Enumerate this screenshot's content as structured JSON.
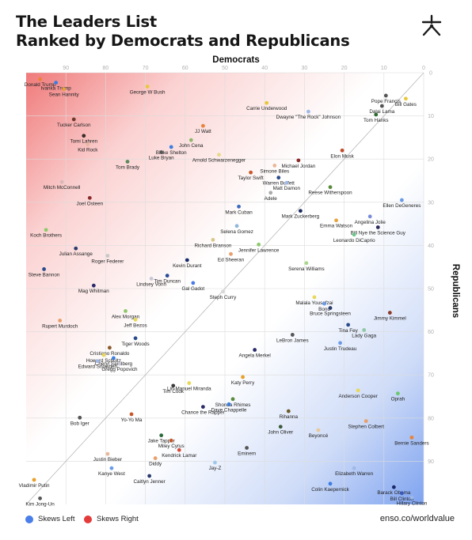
{
  "title_line1": "The Leaders List",
  "title_line2": "Ranked by Democrats and Republicans",
  "logo_icon": "asterisk-icon",
  "source": "enso.co/worldvalue",
  "legend": [
    {
      "label": "Skews Left",
      "color": "#4a7ee8"
    },
    {
      "label": "Skews Right",
      "color": "#e53a3a"
    }
  ],
  "chart_data": {
    "type": "scatter",
    "xlabel": "Democrats",
    "ylabel": "Republicans",
    "x_axis": "Democrats rank (reversed, top axis)",
    "y_axis": "Republicans rank (right axis)",
    "xlim": [
      0,
      100
    ],
    "ylim": [
      0,
      100
    ],
    "x_reversed": true,
    "x_ticks": [
      0,
      10,
      20,
      30,
      40,
      50,
      60,
      70,
      80,
      90
    ],
    "y_ticks": [
      0,
      10,
      20,
      30,
      40,
      50,
      60,
      70,
      80,
      90
    ],
    "grid": true,
    "diagonal": true,
    "points": [
      {
        "label": "Donald Trump",
        "x": 96.5,
        "y": 1.5,
        "color": "#e8833a"
      },
      {
        "label": "Ivanka Trump",
        "x": 92.5,
        "y": 2.3,
        "color": "#3b7de0"
      },
      {
        "label": "Sean Hannity",
        "x": 90.5,
        "y": 3.8,
        "color": "#e8a23a"
      },
      {
        "label": "George W Bush",
        "x": 69.5,
        "y": 3.2,
        "color": "#e8c83a"
      },
      {
        "label": "Pope Francis",
        "x": 9.5,
        "y": 5.3,
        "color": "#555555"
      },
      {
        "label": "Bill Gates",
        "x": 4.5,
        "y": 6.0,
        "color": "#e8c83a"
      },
      {
        "label": "Dalai Lama",
        "x": 10.5,
        "y": 7.7,
        "color": "#555555"
      },
      {
        "label": "Carrie Underwood",
        "x": 39.5,
        "y": 7.0,
        "color": "#e8c83a"
      },
      {
        "label": "Dwayne \"The Rock\" Johnson",
        "x": 29.0,
        "y": 9.0,
        "color": "#9fb8e8"
      },
      {
        "label": "Tom Hanks",
        "x": 12.0,
        "y": 9.7,
        "color": "#2d6b2d"
      },
      {
        "label": "Tucker Carlson",
        "x": 88.0,
        "y": 10.8,
        "color": "#6b3a2a"
      },
      {
        "label": "JJ Watt",
        "x": 55.5,
        "y": 12.3,
        "color": "#e8833a"
      },
      {
        "label": "Tomi Lahren",
        "x": 85.5,
        "y": 14.6,
        "color": "#3a2a2a"
      },
      {
        "label": "John Cena",
        "x": 58.5,
        "y": 15.6,
        "color": "#8fb86b"
      },
      {
        "label": "Kid Rock",
        "x": 84.5,
        "y": 16.6,
        "color": "#e8b8a0"
      },
      {
        "label": "Blake Shelton",
        "x": 63.5,
        "y": 17.2,
        "color": "#3b7de0"
      },
      {
        "label": "Luke Bryan",
        "x": 66.0,
        "y": 18.4,
        "color": "#555555"
      },
      {
        "label": "Elon Musk",
        "x": 20.5,
        "y": 18.0,
        "color": "#c04a2a"
      },
      {
        "label": "Arnold Schwarzenegger",
        "x": 51.5,
        "y": 19.0,
        "color": "#e8d88a"
      },
      {
        "label": "Michael Jordan",
        "x": 31.5,
        "y": 20.3,
        "color": "#8a2a2a"
      },
      {
        "label": "Tom Brady",
        "x": 74.5,
        "y": 20.6,
        "color": "#5a8a5a"
      },
      {
        "label": "Simone Biles",
        "x": 37.5,
        "y": 21.5,
        "color": "#e8b89a"
      },
      {
        "label": "Taylor Swift",
        "x": 43.5,
        "y": 23.1,
        "color": "#c8582a"
      },
      {
        "label": "Warren Buffett",
        "x": 36.5,
        "y": 24.3,
        "color": "#2a4a8a"
      },
      {
        "label": "Matt Damon",
        "x": 34.5,
        "y": 25.5,
        "color": "#9fb8e8"
      },
      {
        "label": "Mitch McConnell",
        "x": 91.0,
        "y": 25.3,
        "color": "#d8b8b8"
      },
      {
        "label": "Reese Witherspoon",
        "x": 23.5,
        "y": 26.5,
        "color": "#5a8a3a"
      },
      {
        "label": "Adele",
        "x": 38.5,
        "y": 27.8,
        "color": "#aaaaaa"
      },
      {
        "label": "Joel Osteen",
        "x": 84.0,
        "y": 29.0,
        "color": "#8a2a2a"
      },
      {
        "label": "Ellen DeGeneres",
        "x": 5.5,
        "y": 29.5,
        "color": "#6b9be8"
      },
      {
        "label": "Mark Cuban",
        "x": 46.5,
        "y": 31.0,
        "color": "#3b6bc0"
      },
      {
        "label": "Mark Zuckerberg",
        "x": 31.0,
        "y": 32.0,
        "color": "#1a2a5a"
      },
      {
        "label": "Angelina Jolie",
        "x": 13.5,
        "y": 33.3,
        "color": "#7a8ad8"
      },
      {
        "label": "Emma Watson",
        "x": 22.0,
        "y": 34.2,
        "color": "#e8a23a"
      },
      {
        "label": "Bill Nye the Science Guy",
        "x": 11.5,
        "y": 35.8,
        "color": "#2a2a5a"
      },
      {
        "label": "Selena Gomez",
        "x": 47.0,
        "y": 35.5,
        "color": "#8fb8d8"
      },
      {
        "label": "Koch Brothers",
        "x": 95.0,
        "y": 36.4,
        "color": "#8fc86b"
      },
      {
        "label": "Leonardo DiCaprio",
        "x": 17.5,
        "y": 37.5,
        "color": "#6bc88a"
      },
      {
        "label": "Richard Branson",
        "x": 53.0,
        "y": 38.7,
        "color": "#d8c88a"
      },
      {
        "label": "Jennifer Lawrence",
        "x": 41.5,
        "y": 39.8,
        "color": "#8fc86b"
      },
      {
        "label": "Julian Assange",
        "x": 87.5,
        "y": 40.7,
        "color": "#2a3a6a"
      },
      {
        "label": "Ed Sheeran",
        "x": 48.5,
        "y": 42.0,
        "color": "#e8a06b"
      },
      {
        "label": "Roger Federer",
        "x": 79.5,
        "y": 42.4,
        "color": "#c8c8c8"
      },
      {
        "label": "Kevin Durant",
        "x": 59.5,
        "y": 43.4,
        "color": "#1a2a6a"
      },
      {
        "label": "Serena Williams",
        "x": 29.5,
        "y": 44.1,
        "color": "#a8d88a"
      },
      {
        "label": "Steve Bannon",
        "x": 95.5,
        "y": 45.5,
        "color": "#2a4a8a"
      },
      {
        "label": "Tim Duncan",
        "x": 64.5,
        "y": 47.0,
        "color": "#2a4a9a"
      },
      {
        "label": "Lindsey Vonn",
        "x": 68.5,
        "y": 47.7,
        "color": "#c8c8d8"
      },
      {
        "label": "Gal Gadot",
        "x": 58.0,
        "y": 48.7,
        "color": "#4a7ae8"
      },
      {
        "label": "Mag Whitman",
        "x": 83.0,
        "y": 49.3,
        "color": "#2a2a6a"
      },
      {
        "label": "Steph Curry",
        "x": 50.5,
        "y": 50.7,
        "color": "#d8d8d8"
      },
      {
        "label": "Malala Yousafzai",
        "x": 27.5,
        "y": 52.0,
        "color": "#e8d85a"
      },
      {
        "label": "Bono",
        "x": 25.0,
        "y": 53.5,
        "color": "#6b9be8"
      },
      {
        "label": "Bruce Springsteen",
        "x": 23.5,
        "y": 54.5,
        "color": "#2a3a6a"
      },
      {
        "label": "Alex Morgan",
        "x": 75.0,
        "y": 55.2,
        "color": "#8fc86b"
      },
      {
        "label": "Jimmy Kimmel",
        "x": 8.5,
        "y": 55.6,
        "color": "#8a3a2a"
      },
      {
        "label": "Rupert Murdoch",
        "x": 91.5,
        "y": 57.4,
        "color": "#e8a06b"
      },
      {
        "label": "Jeff Bezos",
        "x": 72.5,
        "y": 57.2,
        "color": "#e8d85a"
      },
      {
        "label": "Tina Fey",
        "x": 19.0,
        "y": 58.4,
        "color": "#2a4a8a"
      },
      {
        "label": "Lady Gaga",
        "x": 15.0,
        "y": 59.6,
        "color": "#8fc8a8"
      },
      {
        "label": "LeBron James",
        "x": 33.0,
        "y": 60.7,
        "color": "#555555"
      },
      {
        "label": "Tiger Woods",
        "x": 72.5,
        "y": 61.5,
        "color": "#2a4a8a"
      },
      {
        "label": "Justin Trudeau",
        "x": 21.0,
        "y": 62.6,
        "color": "#6b9be8"
      },
      {
        "label": "Cristiano Ronaldo",
        "x": 79.0,
        "y": 63.7,
        "color": "#8a5a2a"
      },
      {
        "label": "Angela Merkel",
        "x": 42.5,
        "y": 64.2,
        "color": "#2a2a6a"
      },
      {
        "label": "Howard Schultz",
        "x": 80.5,
        "y": 65.4,
        "color": "#e8d85a"
      },
      {
        "label": "Cheryl Sandberg",
        "x": 78.0,
        "y": 66.1,
        "color": "#3b7de0"
      },
      {
        "label": "Edward Snowden",
        "x": 82.0,
        "y": 66.8,
        "color": "#9fb8e8"
      },
      {
        "label": "Gregg Popovich",
        "x": 76.5,
        "y": 67.4,
        "color": "#c8c8d8"
      },
      {
        "label": "Katy Perry",
        "x": 45.5,
        "y": 70.5,
        "color": "#e8a02a"
      },
      {
        "label": "Lin-Manuel Miranda",
        "x": 59.0,
        "y": 71.9,
        "color": "#e8d85a"
      },
      {
        "label": "Tim Cook",
        "x": 63.0,
        "y": 72.5,
        "color": "#3a3a3a"
      },
      {
        "label": "Anderson Cooper",
        "x": 16.5,
        "y": 73.6,
        "color": "#e8d85a"
      },
      {
        "label": "Oprah",
        "x": 6.5,
        "y": 74.3,
        "color": "#6bc86b"
      },
      {
        "label": "Shonda Rhimes",
        "x": 48.0,
        "y": 75.6,
        "color": "#5a8a3a"
      },
      {
        "label": "Dave Chappelle",
        "x": 49.0,
        "y": 76.8,
        "color": "#3b7de0"
      },
      {
        "label": "Chance the Rapper",
        "x": 55.5,
        "y": 77.4,
        "color": "#2a2a6a"
      },
      {
        "label": "Rihanna",
        "x": 34.0,
        "y": 78.4,
        "color": "#6b5a2a"
      },
      {
        "label": "Yo-Yo Ma",
        "x": 73.5,
        "y": 79.1,
        "color": "#c8582a"
      },
      {
        "label": "Bob Iger",
        "x": 86.5,
        "y": 79.9,
        "color": "#555555"
      },
      {
        "label": "Stephen Colbert",
        "x": 14.5,
        "y": 80.7,
        "color": "#e8a06b"
      },
      {
        "label": "John Oliver",
        "x": 36.0,
        "y": 82.0,
        "color": "#3a5a3a"
      },
      {
        "label": "Beyoncé",
        "x": 26.5,
        "y": 82.8,
        "color": "#e8c89a"
      },
      {
        "label": "Jake Tapper",
        "x": 66.0,
        "y": 84.0,
        "color": "#2a6b3a"
      },
      {
        "label": "Miley Cyrus",
        "x": 63.5,
        "y": 85.2,
        "color": "#c8582a"
      },
      {
        "label": "Bernie Sanders",
        "x": 3.0,
        "y": 84.5,
        "color": "#e8833a"
      },
      {
        "label": "Kendrick Lamar",
        "x": 61.5,
        "y": 87.4,
        "color": "#d84a3a"
      },
      {
        "label": "Eminem",
        "x": 44.5,
        "y": 86.9,
        "color": "#555555"
      },
      {
        "label": "Justin Bieber",
        "x": 79.5,
        "y": 88.3,
        "color": "#e8b89a"
      },
      {
        "label": "Diddy",
        "x": 67.5,
        "y": 89.3,
        "color": "#e8a06b"
      },
      {
        "label": "Jay-Z",
        "x": 52.5,
        "y": 90.3,
        "color": "#9fc8e8"
      },
      {
        "label": "Kanye West",
        "x": 78.5,
        "y": 91.6,
        "color": "#6b9be8"
      },
      {
        "label": "Elizabeth Warren",
        "x": 17.5,
        "y": 91.6,
        "color": "#9fb8e8"
      },
      {
        "label": "Caitlyn Jenner",
        "x": 69.0,
        "y": 93.4,
        "color": "#2a3a6a"
      },
      {
        "label": "Vladimir Putin",
        "x": 98.0,
        "y": 94.3,
        "color": "#e8a02a"
      },
      {
        "label": "Colin Kaepernick",
        "x": 23.5,
        "y": 95.2,
        "color": "#3b7de0"
      },
      {
        "label": "Barack Obama",
        "x": 7.5,
        "y": 96.0,
        "color": "#1a2a6a"
      },
      {
        "label": "Bill Clinton",
        "x": 5.5,
        "y": 97.4,
        "color": "#3b5ab8"
      },
      {
        "label": "Hillary Clinton",
        "x": 3.0,
        "y": 98.4,
        "color": "#9fb8e8"
      },
      {
        "label": "Kim Jong-Un",
        "x": 96.5,
        "y": 98.6,
        "color": "#555555"
      }
    ]
  }
}
